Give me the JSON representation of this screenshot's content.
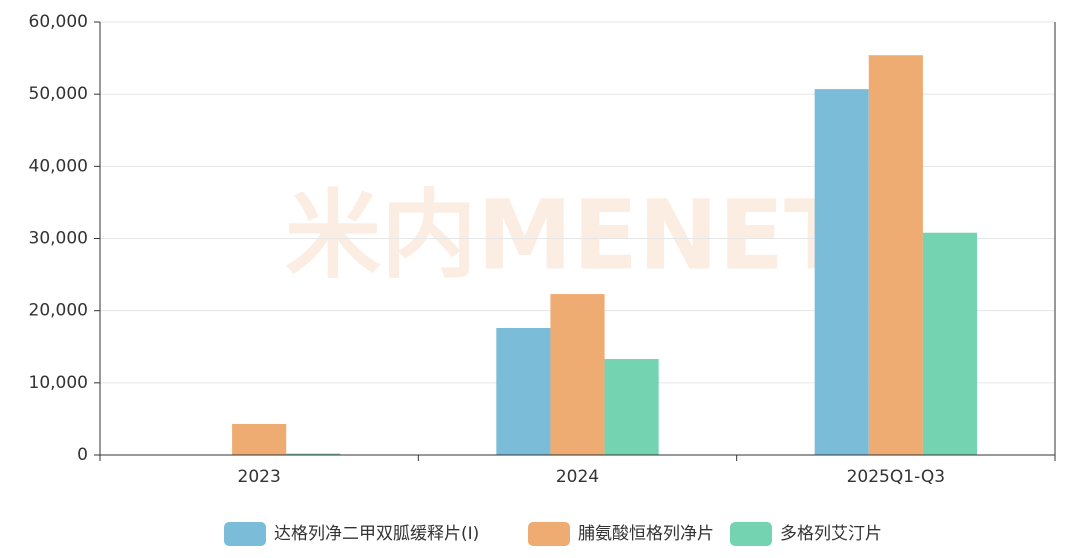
{
  "chart_data": {
    "type": "bar",
    "watermark": "米内MENET",
    "categories": [
      "2023",
      "2024",
      "2025Q1-Q3"
    ],
    "series": [
      {
        "name": "达格列净二甲双胍缓释片(Ⅰ)",
        "color": "#7bbcd9",
        "values": [
          0,
          17600,
          50700
        ]
      },
      {
        "name": "脯氨酸恒格列净片",
        "color": "#eeab72",
        "values": [
          4300,
          22300,
          55400
        ]
      },
      {
        "name": "多格列艾汀片",
        "color": "#74d3b0",
        "values": [
          200,
          13300,
          30800
        ]
      }
    ],
    "ylim": [
      0,
      60000
    ],
    "yticks": [
      0,
      {
        "value": 10000,
        "label": "10,000"
      },
      {
        "value": 20000,
        "label": "20,000"
      },
      {
        "value": 30000,
        "label": "30,000"
      },
      {
        "value": 40000,
        "label": "40,000"
      },
      {
        "value": 50000,
        "label": "50,000"
      },
      {
        "value": 60000,
        "label": "60,000"
      }
    ],
    "grid": true,
    "legend": "bottom"
  }
}
